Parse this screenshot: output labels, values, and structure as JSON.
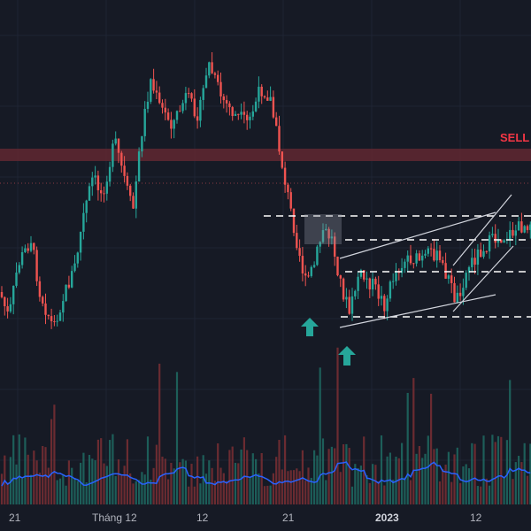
{
  "chart_data": {
    "type": "candlestick",
    "x_tick_labels": [
      "21",
      "Tháng 12",
      "12",
      "21",
      "2023",
      "12"
    ],
    "annotations": {
      "sell_zone_label": "SELL"
    },
    "colors": {
      "background": "#161a25",
      "up": "#26a69a",
      "down": "#ef5350",
      "sell_zone": "#6b2a33",
      "volume_ma": "#2962ff",
      "levels": "#ffffff",
      "arrows": "#26a69a",
      "grid": "#1f2433"
    },
    "price_segments": [
      {
        "from": 0,
        "to": 0.3,
        "start": 320,
        "end": 330
      },
      {
        "from": 0.3,
        "to": 0.65,
        "start": 330,
        "end": 280
      },
      {
        "from": 0.65,
        "to": 1.0,
        "start": 280,
        "end": 365
      },
      {
        "from": 1.0,
        "to": 1.0,
        "start": 365,
        "end": 365
      }
    ],
    "volume_ma_level": "medium",
    "grid": true
  }
}
